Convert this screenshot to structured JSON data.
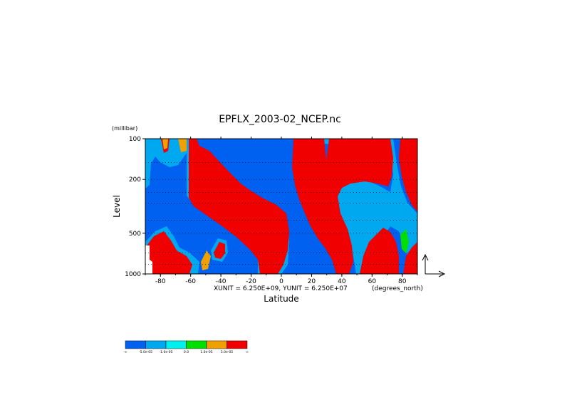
{
  "chart_data": {
    "type": "heatmap",
    "title": "EPFLX_2003-02_NCEP.nc",
    "xlabel": "Latitude",
    "ylabel": "Level",
    "y_units": "(millibar)",
    "x_units": "(degrees_north)",
    "unit_note": "XUNIT = 6.250E+09, YUNIT = 6.250E+07",
    "x_ticks": [
      "-80",
      "-60",
      "-40",
      "-20",
      "0",
      "20",
      "40",
      "60",
      "80"
    ],
    "y_ticks": [
      "100",
      "200",
      "500",
      "1000"
    ],
    "xlim": [
      -90,
      90
    ],
    "ylim": [
      1000,
      100
    ],
    "y_scale": "log",
    "grid": "dotted horizontal",
    "colorbar": {
      "colors": [
        "#0060f0",
        "#00a8f0",
        "#00f0f0",
        "#00e000",
        "#f0a000",
        "#f00000"
      ],
      "labels": [
        "-∞",
        "-5.0e-05",
        "-1.0e-05",
        "0.0",
        "1.0e-05",
        "5.0e-05",
        "∞"
      ]
    },
    "background_color": "#0060f0"
  }
}
